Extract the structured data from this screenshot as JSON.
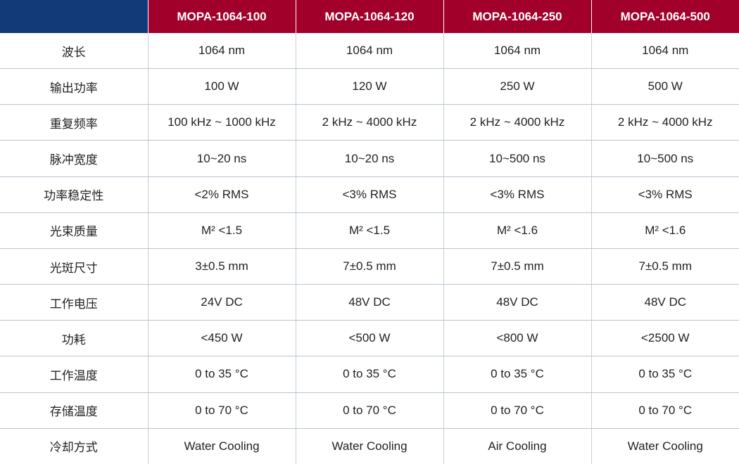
{
  "table": {
    "columns": [
      "",
      "MOPA-1064-100",
      "MOPA-1064-120",
      "MOPA-1064-250",
      "MOPA-1064-500"
    ],
    "rows": [
      {
        "label": "波长",
        "values": [
          "1064 nm",
          "1064 nm",
          "1064 nm",
          "1064 nm"
        ]
      },
      {
        "label": "输出功率",
        "values": [
          "100 W",
          "120 W",
          "250 W",
          "500 W"
        ]
      },
      {
        "label": "重复频率",
        "values": [
          "100 kHz ~ 1000 kHz",
          "2 kHz ~ 4000 kHz",
          "2 kHz ~ 4000 kHz",
          "2 kHz ~ 4000 kHz"
        ]
      },
      {
        "label": "脉冲宽度",
        "values": [
          "10~20 ns",
          "10~20 ns",
          "10~500 ns",
          "10~500 ns"
        ]
      },
      {
        "label": "功率稳定性",
        "values": [
          "<2% RMS",
          "<3% RMS",
          "<3% RMS",
          "<3% RMS"
        ]
      },
      {
        "label": "光束质量",
        "values": [
          "M² <1.5",
          "M² <1.5",
          "M² <1.6",
          "M² <1.6"
        ]
      },
      {
        "label": "光斑尺寸",
        "values": [
          "3±0.5 mm",
          "7±0.5 mm",
          "7±0.5 mm",
          "7±0.5 mm"
        ]
      },
      {
        "label": "工作电压",
        "values": [
          "24V DC",
          "48V DC",
          "48V DC",
          "48V DC"
        ]
      },
      {
        "label": "功耗",
        "values": [
          "<450 W",
          "<500 W",
          "<800 W",
          "<2500 W"
        ]
      },
      {
        "label": "工作温度",
        "values": [
          "0 to 35 °C",
          "0 to 35 °C",
          "0 to 35 °C",
          "0 to 35 °C"
        ]
      },
      {
        "label": "存储温度",
        "values": [
          "0 to 70 °C",
          "0 to 70 °C",
          "0 to 70 °C",
          "0 to 70 °C"
        ]
      },
      {
        "label": "冷却方式",
        "values": [
          "Water Cooling",
          "Water Cooling",
          "Air Cooling",
          "Water Cooling"
        ]
      }
    ]
  },
  "colors": {
    "header_corner": "#123a78",
    "header_bg": "#a0002a",
    "header_text": "#ffffff",
    "grid_line": "#b9c3d6"
  }
}
